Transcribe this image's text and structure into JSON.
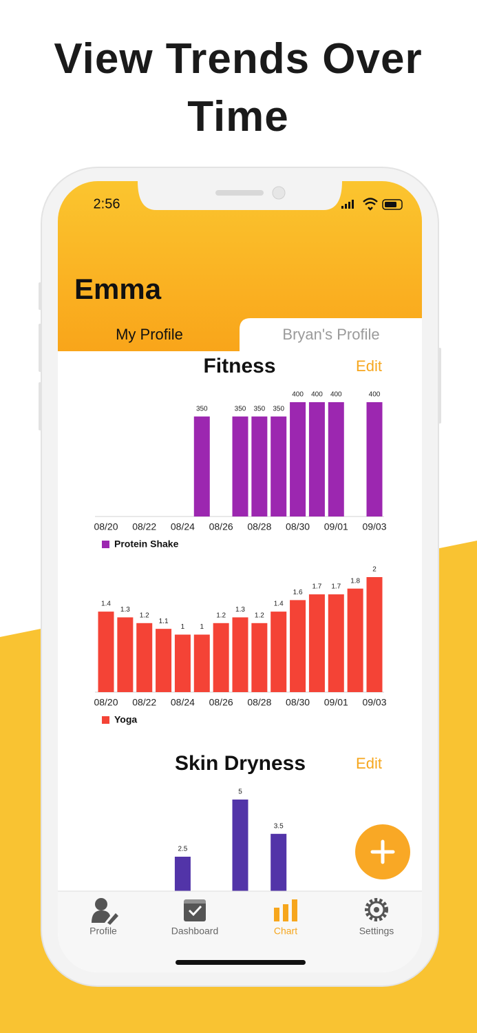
{
  "header": {
    "title": "View Trends Over Time"
  },
  "status_bar": {
    "time": "2:56"
  },
  "app": {
    "user": "Emma",
    "tabs": [
      "My Profile",
      "Bryan's Profile"
    ],
    "active_tab": 0
  },
  "sections": [
    {
      "title": "Fitness",
      "action": "Edit"
    },
    {
      "title": "Skin Dryness",
      "action": "Edit"
    }
  ],
  "chart_data": [
    {
      "type": "bar",
      "categories": [
        "08/20",
        null,
        "08/22",
        null,
        "08/24",
        null,
        "08/26",
        null,
        "08/28",
        null,
        "08/30",
        null,
        "09/01",
        null,
        "09/03"
      ],
      "series": [
        {
          "name": "Protein Shake",
          "color": "#9c27b0",
          "values": [
            null,
            null,
            null,
            null,
            null,
            350,
            null,
            350,
            350,
            350,
            400,
            400,
            400,
            null,
            400
          ]
        }
      ]
    },
    {
      "type": "bar",
      "categories": [
        "08/20",
        null,
        "08/22",
        null,
        "08/24",
        null,
        "08/26",
        null,
        "08/28",
        null,
        "08/30",
        null,
        "09/01",
        null,
        "09/03"
      ],
      "series": [
        {
          "name": "Yoga",
          "color": "#f44336",
          "values": [
            1.4,
            1.3,
            1.2,
            1.1,
            1,
            1,
            1.2,
            1.3,
            1.2,
            1.4,
            1.6,
            1.7,
            1.7,
            1.8,
            2
          ]
        }
      ]
    },
    {
      "type": "bar",
      "color": "#5234a8",
      "values": [
        null,
        null,
        null,
        null,
        2.5,
        null,
        null,
        5,
        null,
        3.5,
        null,
        null,
        null,
        null,
        null
      ]
    }
  ],
  "nav": {
    "items": [
      "Profile",
      "Dashboard",
      "Chart",
      "Settings"
    ],
    "active_index": 2
  }
}
